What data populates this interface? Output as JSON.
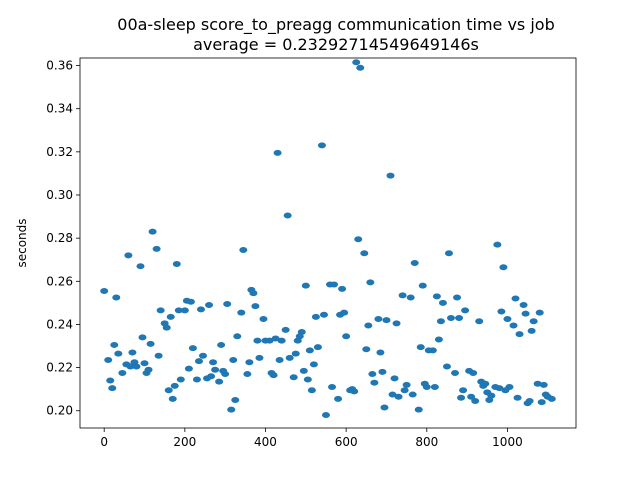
{
  "chart_data": {
    "type": "scatter",
    "title": "00a-sleep score_to_preagg communication time vs job",
    "subtitle": "average = 0.23292714549649146s",
    "xlabel": "",
    "ylabel": "seconds",
    "xlim": [
      -60,
      1170
    ],
    "ylim": [
      0.192,
      0.3635
    ],
    "xticks": [
      0,
      200,
      400,
      600,
      800,
      1000
    ],
    "yticks": [
      0.2,
      0.22,
      0.24,
      0.26,
      0.28,
      0.3,
      0.32,
      0.34,
      0.36
    ],
    "ytick_labels": [
      "0.20",
      "0.22",
      "0.24",
      "0.26",
      "0.28",
      "0.30",
      "0.32",
      "0.34",
      "0.36"
    ],
    "grid": false,
    "marker_color": "#1f77b4",
    "points": [
      [
        0,
        0.2555
      ],
      [
        10,
        0.2235
      ],
      [
        15,
        0.214
      ],
      [
        20,
        0.2105
      ],
      [
        25,
        0.2305
      ],
      [
        30,
        0.2525
      ],
      [
        35,
        0.2265
      ],
      [
        45,
        0.2175
      ],
      [
        55,
        0.2215
      ],
      [
        60,
        0.272
      ],
      [
        65,
        0.2205
      ],
      [
        70,
        0.227
      ],
      [
        75,
        0.2225
      ],
      [
        80,
        0.2205
      ],
      [
        90,
        0.267
      ],
      [
        95,
        0.234
      ],
      [
        100,
        0.222
      ],
      [
        105,
        0.2175
      ],
      [
        110,
        0.219
      ],
      [
        115,
        0.231
      ],
      [
        120,
        0.283
      ],
      [
        130,
        0.275
      ],
      [
        135,
        0.2255
      ],
      [
        140,
        0.2465
      ],
      [
        150,
        0.2405
      ],
      [
        155,
        0.2385
      ],
      [
        160,
        0.2095
      ],
      [
        165,
        0.2435
      ],
      [
        170,
        0.2055
      ],
      [
        175,
        0.2115
      ],
      [
        180,
        0.268
      ],
      [
        185,
        0.2465
      ],
      [
        190,
        0.2145
      ],
      [
        200,
        0.2465
      ],
      [
        205,
        0.251
      ],
      [
        210,
        0.2195
      ],
      [
        215,
        0.2505
      ],
      [
        220,
        0.229
      ],
      [
        230,
        0.2145
      ],
      [
        235,
        0.223
      ],
      [
        240,
        0.247
      ],
      [
        245,
        0.2255
      ],
      [
        255,
        0.215
      ],
      [
        260,
        0.249
      ],
      [
        265,
        0.216
      ],
      [
        270,
        0.2225
      ],
      [
        275,
        0.219
      ],
      [
        285,
        0.2135
      ],
      [
        290,
        0.2305
      ],
      [
        295,
        0.2185
      ],
      [
        300,
        0.217
      ],
      [
        305,
        0.2495
      ],
      [
        315,
        0.2005
      ],
      [
        320,
        0.2235
      ],
      [
        325,
        0.205
      ],
      [
        330,
        0.2345
      ],
      [
        340,
        0.2455
      ],
      [
        345,
        0.2745
      ],
      [
        355,
        0.217
      ],
      [
        360,
        0.2225
      ],
      [
        365,
        0.256
      ],
      [
        370,
        0.2545
      ],
      [
        375,
        0.2485
      ],
      [
        380,
        0.2325
      ],
      [
        385,
        0.2245
      ],
      [
        395,
        0.2425
      ],
      [
        400,
        0.2325
      ],
      [
        410,
        0.2325
      ],
      [
        415,
        0.2175
      ],
      [
        420,
        0.2165
      ],
      [
        425,
        0.2335
      ],
      [
        430,
        0.3195
      ],
      [
        435,
        0.2235
      ],
      [
        440,
        0.2325
      ],
      [
        450,
        0.2375
      ],
      [
        455,
        0.2905
      ],
      [
        460,
        0.2245
      ],
      [
        470,
        0.2155
      ],
      [
        475,
        0.2265
      ],
      [
        480,
        0.2325
      ],
      [
        485,
        0.2345
      ],
      [
        490,
        0.2365
      ],
      [
        495,
        0.2185
      ],
      [
        500,
        0.258
      ],
      [
        505,
        0.2145
      ],
      [
        510,
        0.228
      ],
      [
        515,
        0.2095
      ],
      [
        520,
        0.2215
      ],
      [
        525,
        0.2435
      ],
      [
        530,
        0.2295
      ],
      [
        540,
        0.323
      ],
      [
        545,
        0.2445
      ],
      [
        550,
        0.198
      ],
      [
        560,
        0.2585
      ],
      [
        565,
        0.211
      ],
      [
        570,
        0.2585
      ],
      [
        580,
        0.2055
      ],
      [
        585,
        0.2445
      ],
      [
        590,
        0.2565
      ],
      [
        595,
        0.2455
      ],
      [
        600,
        0.2345
      ],
      [
        610,
        0.2095
      ],
      [
        615,
        0.21
      ],
      [
        620,
        0.209
      ],
      [
        625,
        0.3615
      ],
      [
        630,
        0.2795
      ],
      [
        635,
        0.359
      ],
      [
        645,
        0.273
      ],
      [
        650,
        0.2285
      ],
      [
        655,
        0.2395
      ],
      [
        660,
        0.2595
      ],
      [
        665,
        0.217
      ],
      [
        670,
        0.213
      ],
      [
        680,
        0.2425
      ],
      [
        685,
        0.227
      ],
      [
        690,
        0.218
      ],
      [
        695,
        0.2015
      ],
      [
        700,
        0.242
      ],
      [
        710,
        0.309
      ],
      [
        715,
        0.2075
      ],
      [
        720,
        0.215
      ],
      [
        725,
        0.2405
      ],
      [
        730,
        0.2065
      ],
      [
        740,
        0.2535
      ],
      [
        745,
        0.2095
      ],
      [
        750,
        0.212
      ],
      [
        760,
        0.2525
      ],
      [
        765,
        0.2075
      ],
      [
        770,
        0.2685
      ],
      [
        780,
        0.2005
      ],
      [
        785,
        0.2295
      ],
      [
        790,
        0.258
      ],
      [
        795,
        0.2125
      ],
      [
        800,
        0.211
      ],
      [
        805,
        0.228
      ],
      [
        815,
        0.228
      ],
      [
        820,
        0.211
      ],
      [
        825,
        0.253
      ],
      [
        830,
        0.233
      ],
      [
        835,
        0.2415
      ],
      [
        840,
        0.25
      ],
      [
        850,
        0.2205
      ],
      [
        855,
        0.273
      ],
      [
        860,
        0.243
      ],
      [
        870,
        0.2175
      ],
      [
        875,
        0.2525
      ],
      [
        880,
        0.243
      ],
      [
        885,
        0.206
      ],
      [
        890,
        0.2095
      ],
      [
        895,
        0.2465
      ],
      [
        905,
        0.2185
      ],
      [
        910,
        0.2065
      ],
      [
        915,
        0.2175
      ],
      [
        920,
        0.2045
      ],
      [
        930,
        0.2415
      ],
      [
        935,
        0.2135
      ],
      [
        940,
        0.2115
      ],
      [
        945,
        0.2125
      ],
      [
        950,
        0.2085
      ],
      [
        955,
        0.205
      ],
      [
        960,
        0.207
      ],
      [
        970,
        0.211
      ],
      [
        975,
        0.277
      ],
      [
        980,
        0.2105
      ],
      [
        985,
        0.246
      ],
      [
        990,
        0.2665
      ],
      [
        995,
        0.2095
      ],
      [
        1000,
        0.2425
      ],
      [
        1005,
        0.211
      ],
      [
        1015,
        0.2395
      ],
      [
        1020,
        0.252
      ],
      [
        1025,
        0.206
      ],
      [
        1030,
        0.2355
      ],
      [
        1040,
        0.249
      ],
      [
        1045,
        0.245
      ],
      [
        1050,
        0.2035
      ],
      [
        1055,
        0.2045
      ],
      [
        1060,
        0.237
      ],
      [
        1065,
        0.2415
      ],
      [
        1075,
        0.2125
      ],
      [
        1080,
        0.2455
      ],
      [
        1085,
        0.204
      ],
      [
        1090,
        0.212
      ],
      [
        1095,
        0.2075
      ],
      [
        1100,
        0.2065
      ],
      [
        1110,
        0.2055
      ]
    ]
  }
}
